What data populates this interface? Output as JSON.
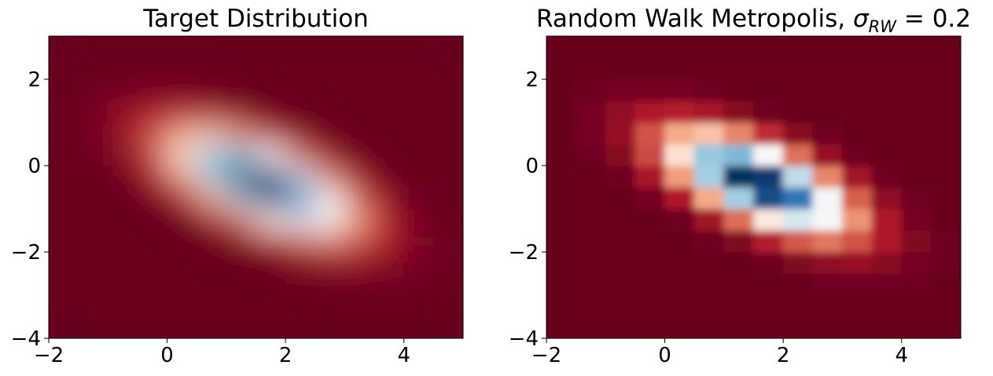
{
  "chart_data": [
    {
      "type": "heatmap",
      "title": "Target Distribution",
      "xlim": [
        -2,
        5
      ],
      "ylim": [
        -4,
        3
      ],
      "xticks": [
        {
          "value": -2,
          "label": "−2"
        },
        0,
        2,
        4
      ],
      "yticks": [
        {
          "value": -4,
          "label": "−4"
        },
        {
          "value": -2,
          "label": "−2"
        },
        0,
        2
      ],
      "xbins": [
        -2,
        -1.5,
        -1,
        -0.5,
        0,
        0.5,
        1,
        1.5,
        2,
        2.5,
        3,
        3.5,
        4,
        4.5,
        5
      ],
      "ybins": [
        -4,
        -3.5,
        -3,
        -2.5,
        -2,
        -1.5,
        -1,
        -0.5,
        0,
        0.5,
        1,
        1.5,
        2,
        2.5,
        3
      ],
      "colors": [
        "#67001f",
        "#b2182b",
        "#d6604d",
        "#f4a582",
        "#fddbc7",
        "#f7f7f7",
        "#d1e5f0",
        "#92c5de",
        "#4393c3",
        "#2166ac",
        "#053061"
      ],
      "smooth": true,
      "values": [
        [
          0,
          0,
          0,
          0,
          0,
          0,
          0,
          0,
          0,
          0,
          0,
          0,
          0,
          0
        ],
        [
          0,
          0,
          0,
          0,
          0,
          0,
          0,
          0,
          0,
          0,
          0,
          0,
          0,
          0
        ],
        [
          0,
          0,
          0,
          0,
          0,
          0,
          0,
          0,
          0,
          0.01,
          0.01,
          0.01,
          0.01,
          0
        ],
        [
          0,
          0,
          0,
          0,
          0,
          0,
          0,
          0.01,
          0.03,
          0.05,
          0.06,
          0.04,
          0.02,
          0.01
        ],
        [
          0,
          0,
          0,
          0,
          0,
          0.01,
          0.03,
          0.1,
          0.18,
          0.22,
          0.17,
          0.09,
          0.03,
          0.01
        ],
        [
          0,
          0,
          0,
          0,
          0.01,
          0.07,
          0.21,
          0.42,
          0.55,
          0.47,
          0.26,
          0.09,
          0.02,
          0
        ],
        [
          0,
          0,
          0,
          0.02,
          0.09,
          0.29,
          0.63,
          0.89,
          0.81,
          0.48,
          0.19,
          0.05,
          0.01,
          0
        ],
        [
          0,
          0,
          0.01,
          0.08,
          0.27,
          0.63,
          0.94,
          0.92,
          0.59,
          0.24,
          0.07,
          0.01,
          0,
          0
        ],
        [
          0,
          0.01,
          0.04,
          0.16,
          0.4,
          0.65,
          0.68,
          0.47,
          0.21,
          0.06,
          0.01,
          0,
          0,
          0
        ],
        [
          0,
          0.02,
          0.06,
          0.17,
          0.29,
          0.33,
          0.24,
          0.12,
          0.04,
          0.01,
          0,
          0,
          0,
          0
        ],
        [
          0,
          0.02,
          0.05,
          0.09,
          0.1,
          0.08,
          0.04,
          0.01,
          0,
          0,
          0,
          0,
          0,
          0
        ],
        [
          0,
          0.01,
          0.02,
          0.02,
          0.02,
          0.01,
          0,
          0,
          0,
          0,
          0,
          0,
          0,
          0
        ],
        [
          0,
          0,
          0,
          0,
          0,
          0,
          0,
          0,
          0,
          0,
          0,
          0,
          0,
          0
        ],
        [
          0,
          0,
          0,
          0,
          0,
          0,
          0,
          0,
          0,
          0,
          0,
          0,
          0,
          0
        ]
      ]
    },
    {
      "type": "heatmap",
      "title": "Random Walk Metropolis, ",
      "title_symbol": "σ",
      "title_subscript": "RW",
      "title_equation": " = 0.2",
      "xlim": [
        -2,
        5
      ],
      "ylim": [
        -4,
        3
      ],
      "xticks": [
        {
          "value": -2,
          "label": "−2"
        },
        0,
        2,
        4
      ],
      "yticks": [
        {
          "value": -4,
          "label": "−4"
        },
        {
          "value": -2,
          "label": "−2"
        },
        0,
        2
      ],
      "xbins": [
        -2,
        -1.5,
        -1,
        -0.5,
        0,
        0.5,
        1,
        1.5,
        2,
        2.5,
        3,
        3.5,
        4,
        4.5,
        5
      ],
      "ybins": [
        -4,
        -3.5,
        -3,
        -2.5,
        -2,
        -1.5,
        -1,
        -0.5,
        0,
        0.5,
        1,
        1.5,
        2,
        2.5,
        3
      ],
      "colors": [
        "#67001f",
        "#b2182b",
        "#d6604d",
        "#f4a582",
        "#fddbc7",
        "#f7f7f7",
        "#d1e5f0",
        "#92c5de",
        "#4393c3",
        "#2166ac",
        "#053061"
      ],
      "smooth": false,
      "values": [
        [
          0,
          0,
          0,
          0,
          0,
          0,
          0,
          0,
          0,
          0,
          0,
          0,
          0,
          0
        ],
        [
          0,
          0,
          0,
          0,
          0,
          0,
          0,
          0,
          0,
          0,
          0,
          0,
          0,
          0
        ],
        [
          0,
          0,
          0,
          0,
          0,
          0,
          0,
          0,
          0,
          0.01,
          0.01,
          0.01,
          0.01,
          0
        ],
        [
          0,
          0,
          0,
          0,
          0,
          0,
          0,
          0.01,
          0.03,
          0.05,
          0.06,
          0.04,
          0.02,
          0.01
        ],
        [
          0,
          0,
          0,
          0,
          0,
          0.01,
          0.03,
          0.1,
          0.18,
          0.22,
          0.17,
          0.09,
          0.03,
          0.01
        ],
        [
          0,
          0,
          0,
          0,
          0.01,
          0.07,
          0.21,
          0.42,
          0.55,
          0.47,
          0.26,
          0.09,
          0.02,
          0
        ],
        [
          0,
          0,
          0,
          0.02,
          0.09,
          0.29,
          0.63,
          0.89,
          0.81,
          0.48,
          0.19,
          0.05,
          0.01,
          0
        ],
        [
          0,
          0,
          0.01,
          0.08,
          0.27,
          0.63,
          0.94,
          0.92,
          0.59,
          0.24,
          0.07,
          0.01,
          0,
          0
        ],
        [
          0,
          0.01,
          0.04,
          0.16,
          0.4,
          0.65,
          0.68,
          0.47,
          0.21,
          0.06,
          0.01,
          0,
          0,
          0
        ],
        [
          0,
          0.02,
          0.06,
          0.17,
          0.29,
          0.33,
          0.24,
          0.12,
          0.04,
          0.01,
          0,
          0,
          0,
          0
        ],
        [
          0,
          0.02,
          0.05,
          0.09,
          0.1,
          0.08,
          0.04,
          0.01,
          0,
          0,
          0,
          0,
          0,
          0
        ],
        [
          0,
          0.01,
          0.02,
          0.02,
          0.02,
          0.01,
          0,
          0,
          0,
          0,
          0,
          0,
          0,
          0
        ],
        [
          0,
          0,
          0,
          0,
          0,
          0,
          0,
          0,
          0,
          0,
          0,
          0,
          0,
          0
        ],
        [
          0,
          0,
          0,
          0,
          0,
          0,
          0,
          0,
          0,
          0,
          0,
          0,
          0,
          0
        ]
      ]
    }
  ]
}
